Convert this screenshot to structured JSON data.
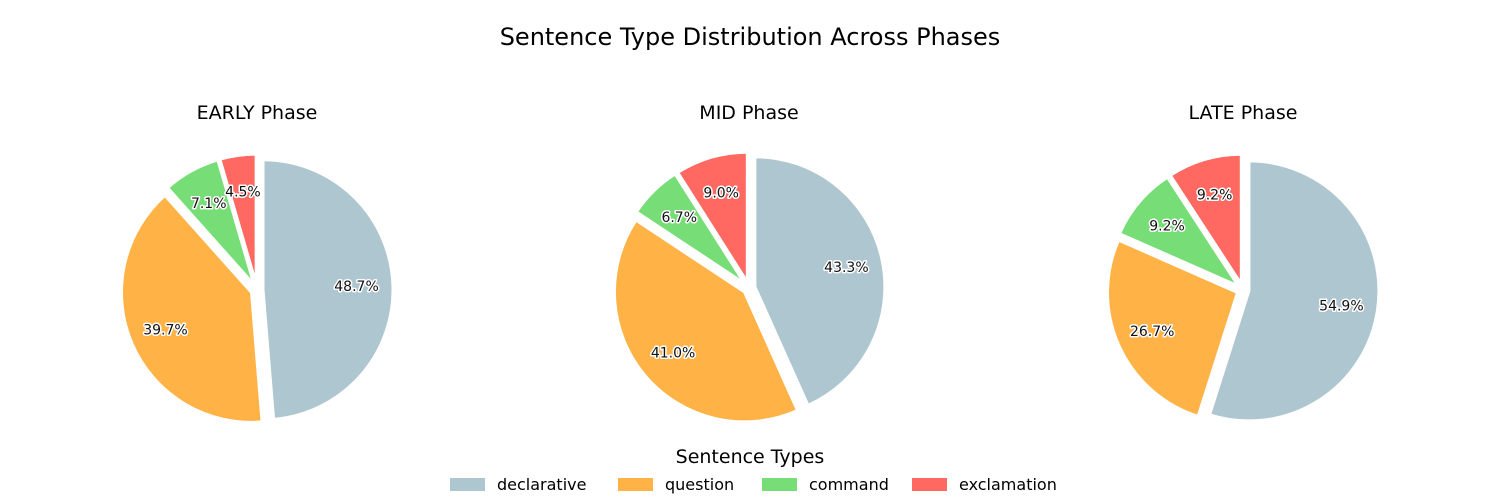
{
  "chart_data": {
    "type": "pie",
    "title": "Sentence Type Distribution Across Phases",
    "categories": [
      "declarative",
      "question",
      "command",
      "exclamation"
    ],
    "colors": {
      "declarative": "#aec6cf",
      "question": "#ffb347",
      "command": "#77dd77",
      "exclamation": "#ff6961"
    },
    "charts": [
      {
        "title": "EARLY Phase",
        "values": [
          48.7,
          39.7,
          7.1,
          4.5
        ],
        "labels": [
          "48.7%",
          "39.7%",
          "7.1%",
          "4.5%"
        ]
      },
      {
        "title": "MID Phase",
        "values": [
          43.3,
          41.0,
          6.7,
          9.0
        ],
        "labels": [
          "43.3%",
          "41.0%",
          "6.7%",
          "9.0%"
        ]
      },
      {
        "title": "LATE Phase",
        "values": [
          54.9,
          26.7,
          9.2,
          9.2
        ],
        "labels": [
          "54.9%",
          "26.7%",
          "9.2%",
          "9.2%"
        ]
      }
    ],
    "legend": {
      "title": "Sentence Types",
      "placement": "bottom-center",
      "entries": [
        "declarative",
        "question",
        "command",
        "exclamation"
      ]
    }
  }
}
